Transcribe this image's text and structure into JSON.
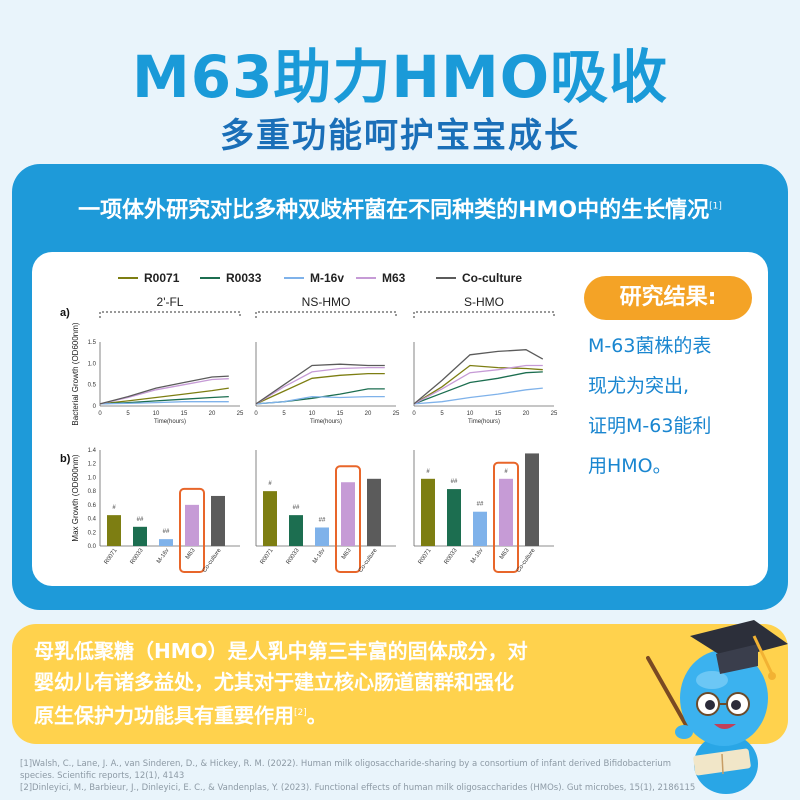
{
  "title": "M63助力HMO吸收",
  "subtitle": "多重功能呵护宝宝成长",
  "card": {
    "header": "一项体外研究对比多种双歧杆菌在不同种类的HMO中的生长情况",
    "header_ref": "[1]"
  },
  "result": {
    "label": "研究结果:",
    "lines": [
      "M-63菌株的表",
      "现尤为突出,",
      "证明M-63能利",
      "用HMO。"
    ]
  },
  "info": {
    "lines": [
      "母乳低聚糖（HMO）是人乳中第三丰富的固体成分，对",
      "婴幼儿有诸多益处，尤其对于建立核心肠道菌群和强化",
      "原生保护力功能具有重要作用"
    ],
    "ref": "[2]",
    "end": "。"
  },
  "references": [
    "[1]Walsh, C., Lane, J. A., van Sinderen, D., & Hickey, R. M. (2022). Human milk oligosaccharide-sharing by a consortium of infant derived Bifidobacterium",
    "species. Scientific reports, 12(1), 4143",
    "[2]Dinleyici, M., Barbieur, J., Dinleyici, E. C., & Vandenplas, Y. (2023). Functional effects of human milk oligosaccharides (HMOs). Gut microbes, 15(1), 2186115"
  ],
  "colors": {
    "title": "#1a9ad8",
    "card_blue": "#1e9ad9",
    "pill_orange": "#f4a326",
    "yellow": "#ffd24d",
    "highlight": "#e8662a"
  },
  "chart_data": {
    "legend": [
      {
        "name": "R0071",
        "color": "#7d7e12"
      },
      {
        "name": "R0033",
        "color": "#1c6e50"
      },
      {
        "name": "M-16v",
        "color": "#7fb2ea"
      },
      {
        "name": "M63",
        "color": "#c69bd6"
      },
      {
        "name": "Co-culture",
        "color": "#5b5b5b"
      }
    ],
    "panel_a": {
      "type": "line",
      "label": "a)",
      "ylabel": "Bacterial Growth (OD600nm)",
      "xlabel": "Time(hours)",
      "xticks": [
        0,
        5,
        10,
        15,
        20,
        25
      ],
      "yticks": [
        0,
        0.5,
        1.0,
        1.5
      ],
      "ytick_labels": [
        "0",
        "0.5",
        "1.0",
        "1.5"
      ],
      "xlim": [
        0,
        25
      ],
      "ylim": [
        0,
        1.5
      ],
      "x": [
        0,
        5,
        10,
        15,
        20,
        23
      ],
      "groups": [
        {
          "name": "2'-FL",
          "series": [
            {
              "name": "R0071",
              "values": [
                0.05,
                0.12,
                0.2,
                0.28,
                0.36,
                0.42
              ]
            },
            {
              "name": "R0033",
              "values": [
                0.05,
                0.08,
                0.12,
                0.16,
                0.2,
                0.22
              ]
            },
            {
              "name": "M-16v",
              "values": [
                0.05,
                0.06,
                0.08,
                0.1,
                0.1,
                0.1
              ]
            },
            {
              "name": "M63",
              "values": [
                0.05,
                0.2,
                0.38,
                0.5,
                0.62,
                0.64
              ]
            },
            {
              "name": "Co-culture",
              "values": [
                0.05,
                0.22,
                0.42,
                0.55,
                0.68,
                0.7
              ]
            }
          ]
        },
        {
          "name": "NS-HMO",
          "series": [
            {
              "name": "R0071",
              "values": [
                0.05,
                0.35,
                0.65,
                0.72,
                0.76,
                0.76
              ]
            },
            {
              "name": "R0033",
              "values": [
                0.05,
                0.1,
                0.18,
                0.28,
                0.4,
                0.4
              ]
            },
            {
              "name": "M-16v",
              "values": [
                0.05,
                0.1,
                0.22,
                0.2,
                0.22,
                0.22
              ]
            },
            {
              "name": "M63",
              "values": [
                0.05,
                0.45,
                0.8,
                0.88,
                0.9,
                0.9
              ]
            },
            {
              "name": "Co-culture",
              "values": [
                0.05,
                0.5,
                0.95,
                0.98,
                0.95,
                0.95
              ]
            }
          ]
        },
        {
          "name": "S-HMO",
          "series": [
            {
              "name": "R0071",
              "values": [
                0.05,
                0.45,
                0.95,
                0.9,
                0.88,
                0.85
              ]
            },
            {
              "name": "R0033",
              "values": [
                0.05,
                0.3,
                0.55,
                0.65,
                0.78,
                0.8
              ]
            },
            {
              "name": "M-16v",
              "values": [
                0.05,
                0.1,
                0.2,
                0.28,
                0.38,
                0.42
              ]
            },
            {
              "name": "M63",
              "values": [
                0.05,
                0.4,
                0.78,
                0.85,
                0.95,
                0.95
              ]
            },
            {
              "name": "Co-culture",
              "values": [
                0.05,
                0.6,
                1.2,
                1.28,
                1.32,
                1.1
              ]
            }
          ]
        }
      ]
    },
    "panel_b": {
      "type": "bar",
      "label": "b)",
      "ylabel": "Max Growth (OD600nm)",
      "yticks": [
        0,
        0.2,
        0.4,
        0.6,
        0.8,
        1.0,
        1.2,
        1.4
      ],
      "ytick_labels": [
        "0.0",
        "0.2",
        "0.4",
        "0.6",
        "0.8",
        "1.0",
        "1.2",
        "1.4"
      ],
      "ylim": [
        0,
        1.4
      ],
      "categories": [
        "R0071",
        "R0033",
        "M-16v",
        "M63",
        "Co-culture"
      ],
      "groups": [
        {
          "name": "2'-FL",
          "values": [
            0.45,
            0.28,
            0.1,
            0.6,
            0.73
          ],
          "marks": [
            "#",
            "##",
            "##",
            "",
            ""
          ]
        },
        {
          "name": "NS-HMO",
          "values": [
            0.8,
            0.45,
            0.27,
            0.93,
            0.98
          ],
          "marks": [
            "#",
            "##",
            "##",
            "",
            ""
          ]
        },
        {
          "name": "S-HMO",
          "values": [
            0.98,
            0.83,
            0.5,
            0.98,
            1.35
          ],
          "marks": [
            "#",
            "##",
            "##",
            "#",
            ""
          ]
        }
      ],
      "highlight": "M63"
    }
  }
}
